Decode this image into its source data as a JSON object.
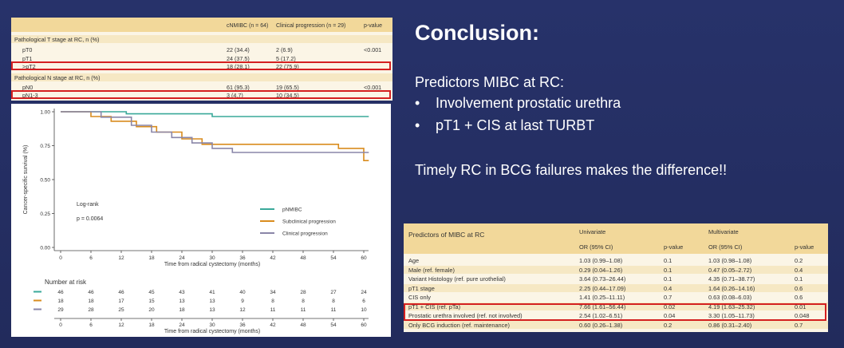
{
  "text": {
    "title": "Conclusion:",
    "predictors_heading": "Predictors MIBC at RC:",
    "bullets": [
      "Involvement prostatic urethra",
      "pT1 + CIS at last TURBT"
    ],
    "timely": "Timely RC in BCG failures makes the difference!!"
  },
  "table1": {
    "headers": [
      "cNMIBC (n = 64)",
      "Clinical progression (n = 29)",
      "p-value"
    ],
    "rows": [
      {
        "label": "Pathological T stage at RC, n (%)",
        "a": "",
        "b": "",
        "p": "",
        "section": true
      },
      {
        "label": "pT0",
        "a": "22 (34.4)",
        "b": "2 (6.9)",
        "p": "<0.001"
      },
      {
        "label": "pT1",
        "a": "24 (37.5)",
        "b": "5 (17.2)",
        "p": ""
      },
      {
        "label": ">pT2",
        "a": "18 (28.1)",
        "b": "22 (75.9)",
        "p": ""
      },
      {
        "label": "Pathological N stage at RC, n (%)",
        "a": "",
        "b": "",
        "p": "",
        "section": true
      },
      {
        "label": "pN0",
        "a": "61 (95.3)",
        "b": "19 (65.5)",
        "p": "<0.001"
      },
      {
        "label": "pN1-3",
        "a": "3 (4.7)",
        "b": "10 (34.5)",
        "p": ""
      }
    ]
  },
  "table2": {
    "title": "Predictors of MIBC at RC",
    "univariate": "Univariate",
    "multivariate": "Multivariate",
    "or_label": "OR (95% CI)",
    "p_label": "p-value",
    "rows": [
      {
        "label": "Age",
        "u_or": "1.03 (0.99–1.08)",
        "u_p": "0.1",
        "m_or": "1.03 (0.98–1.08)",
        "m_p": "0.2"
      },
      {
        "label": "Male (ref. female)",
        "u_or": "0.29 (0.04–1.26)",
        "u_p": "0.1",
        "m_or": "0.47 (0.05–2.72)",
        "m_p": "0.4"
      },
      {
        "label": "Variant Histology (ref. pure urothelial)",
        "u_or": "3.64 (0.73–26.44)",
        "u_p": "0.1",
        "m_or": "4.35 (0.71–38.77)",
        "m_p": "0.1"
      },
      {
        "label": "pT1 stage",
        "u_or": "2.25 (0.44–17.09)",
        "u_p": "0.4",
        "m_or": "1.64 (0.26–14.16)",
        "m_p": "0.6"
      },
      {
        "label": "CIS only",
        "u_or": "1.41 (0.25–11.11)",
        "u_p": "0.7",
        "m_or": "0.63 (0.08–6.03)",
        "m_p": "0.6"
      },
      {
        "label": "pT1 + CIS (ref. pTa)",
        "u_or": "7.66 (1.61–56.44)",
        "u_p": "0.02",
        "m_or": "4.19 (1.63–25.32)",
        "m_p": "0.01"
      },
      {
        "label": "Prostatic urethra involved (ref. not involved)",
        "u_or": "2.54 (1.02–6.51)",
        "u_p": "0.04",
        "m_or": "3.30 (1.05–11.73)",
        "m_p": "0.048"
      },
      {
        "label": "Only BCG induction (ref. maintenance)",
        "u_or": "0.60 (0.26–1.38)",
        "u_p": "0.2",
        "m_or": "0.86 (0.31–2.40)",
        "m_p": "0.7"
      }
    ]
  },
  "chart_data": {
    "type": "line",
    "ylabel": "Cancer-specific survival (%)",
    "xlabel": "Time from radical cystectomy (months)",
    "xlim": [
      0,
      60
    ],
    "ylim": [
      0,
      1
    ],
    "xticks": [
      0,
      6,
      12,
      18,
      24,
      30,
      36,
      42,
      48,
      54,
      60
    ],
    "yticks": [
      "0.00",
      "0.25",
      "0.50",
      "0.75",
      "1.00"
    ],
    "annotation_title": "Log-rank",
    "annotation_p": "p = 0.0064",
    "series": [
      {
        "name": "pNMIBC",
        "color": "#3aa99a",
        "steps": [
          [
            0,
            1.0
          ],
          [
            13,
            1.0
          ],
          [
            13,
            0.985
          ],
          [
            30,
            0.985
          ],
          [
            30,
            0.965
          ],
          [
            61,
            0.965
          ]
        ]
      },
      {
        "name": "Subclinical progression",
        "color": "#d98c1e",
        "steps": [
          [
            0,
            1.0
          ],
          [
            6,
            1.0
          ],
          [
            6,
            0.965
          ],
          [
            10,
            0.965
          ],
          [
            10,
            0.93
          ],
          [
            15,
            0.93
          ],
          [
            15,
            0.89
          ],
          [
            19,
            0.89
          ],
          [
            19,
            0.85
          ],
          [
            24,
            0.85
          ],
          [
            24,
            0.8
          ],
          [
            28,
            0.8
          ],
          [
            28,
            0.76
          ],
          [
            55,
            0.76
          ],
          [
            55,
            0.73
          ],
          [
            60,
            0.73
          ],
          [
            60,
            0.64
          ],
          [
            61,
            0.64
          ]
        ]
      },
      {
        "name": "Clinical progression",
        "color": "#8a86a8",
        "steps": [
          [
            0,
            1.0
          ],
          [
            8,
            1.0
          ],
          [
            8,
            0.96
          ],
          [
            14,
            0.96
          ],
          [
            14,
            0.9
          ],
          [
            18,
            0.9
          ],
          [
            18,
            0.85
          ],
          [
            22,
            0.85
          ],
          [
            22,
            0.81
          ],
          [
            26,
            0.81
          ],
          [
            26,
            0.77
          ],
          [
            30,
            0.77
          ],
          [
            30,
            0.73
          ],
          [
            34,
            0.73
          ],
          [
            34,
            0.7
          ],
          [
            61,
            0.7
          ]
        ]
      }
    ],
    "risk_table": {
      "title": "Number at risk",
      "rows": [
        {
          "color": "#3aa99a",
          "values": [
            46,
            46,
            46,
            45,
            43,
            41,
            40,
            34,
            28,
            27,
            24
          ]
        },
        {
          "color": "#d98c1e",
          "values": [
            18,
            18,
            17,
            15,
            13,
            13,
            9,
            8,
            8,
            8,
            6
          ]
        },
        {
          "color": "#8a86a8",
          "values": [
            29,
            28,
            25,
            20,
            18,
            13,
            12,
            11,
            11,
            11,
            10
          ]
        }
      ]
    }
  }
}
